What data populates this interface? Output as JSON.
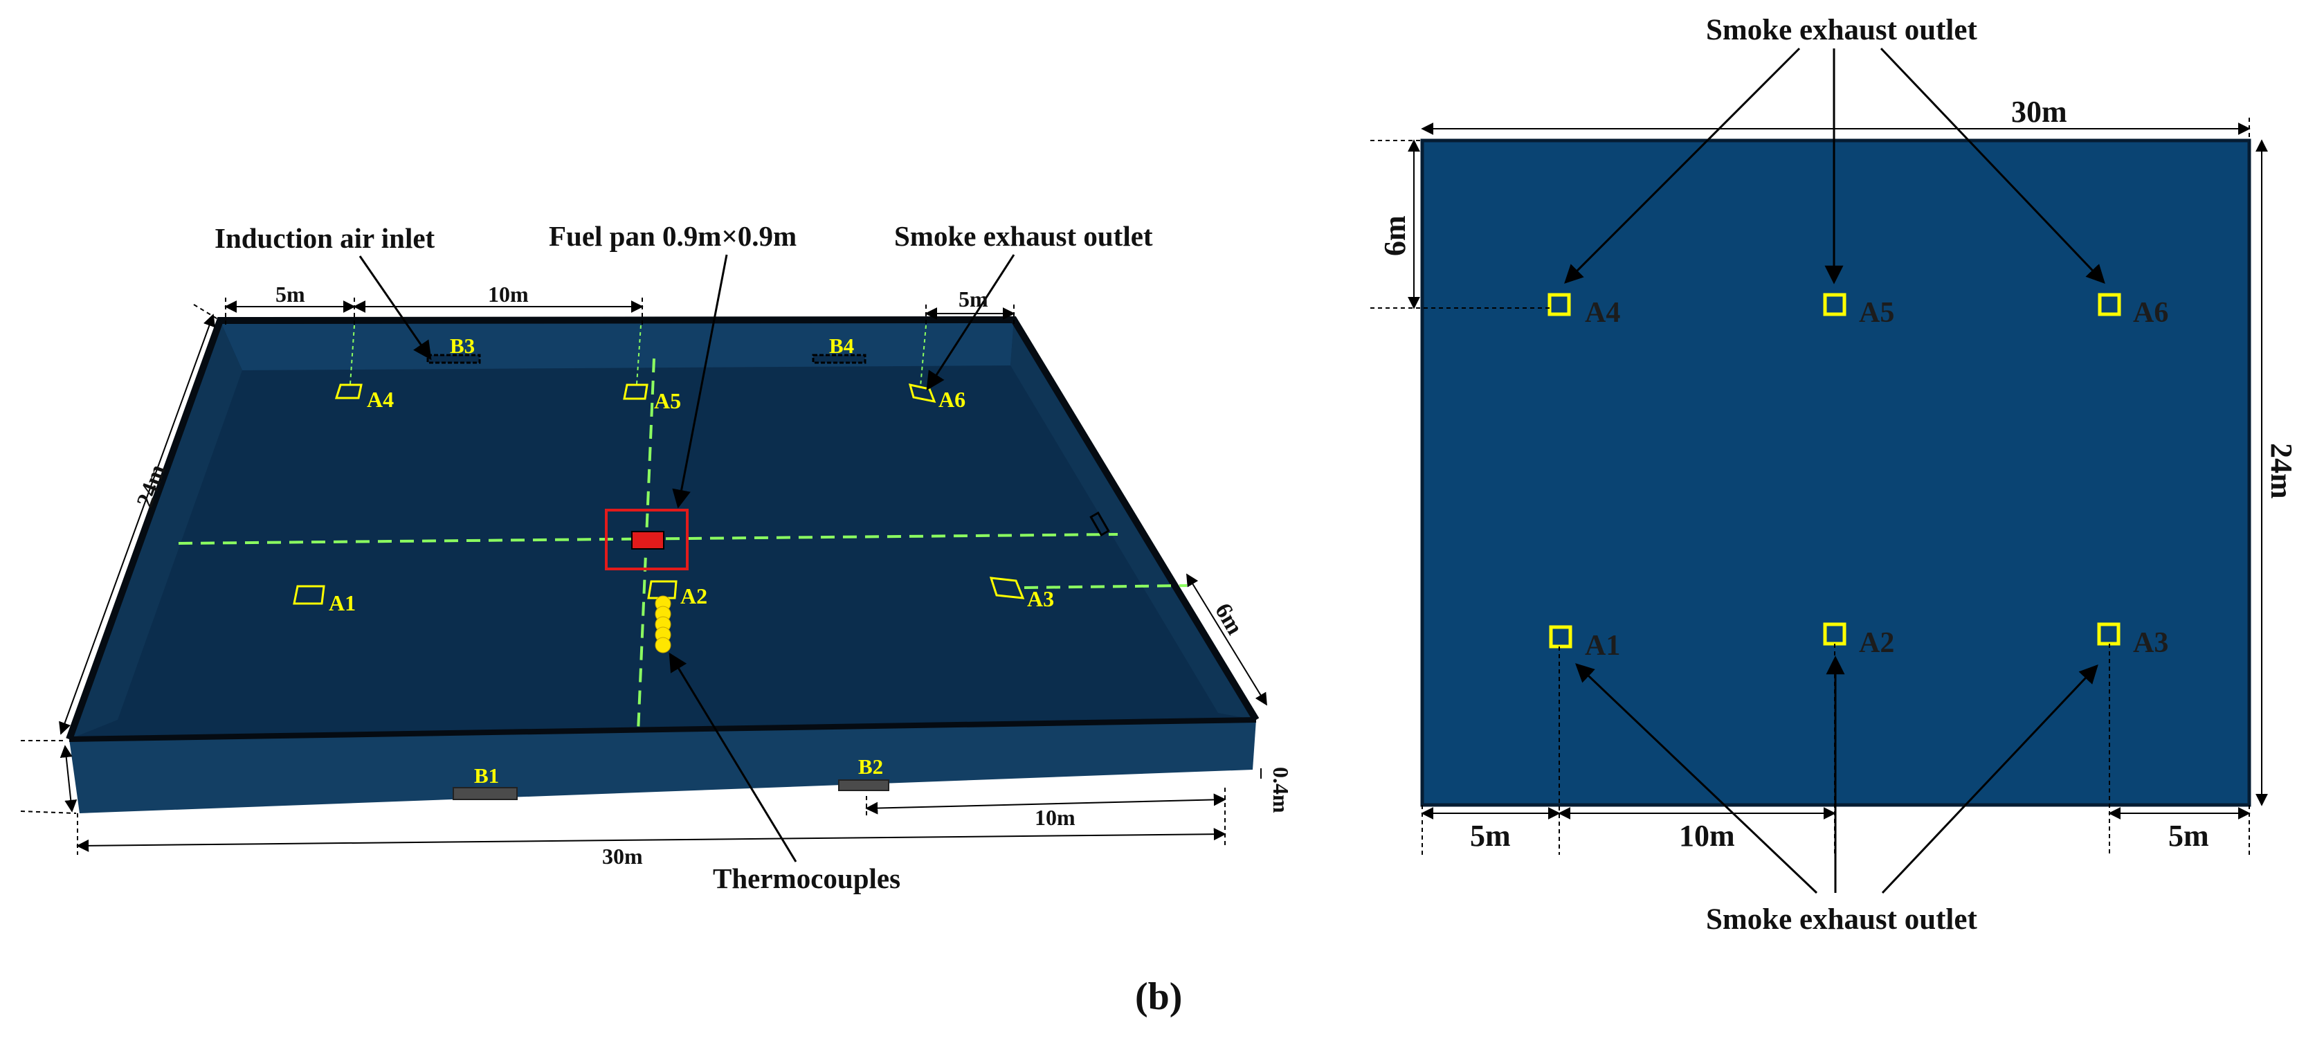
{
  "colors": {
    "pool_floor": "#0b2d4d",
    "pool_wall": "#123f66",
    "plan_fill": "#0a4473",
    "outlet_yellow": "#ffff00",
    "fuel_pan_red": "#e21b1b",
    "guide_green": "#8cff60"
  },
  "view3d": {
    "callouts": {
      "induction_air_inlet": "Induction air inlet",
      "fuel_pan": "Fuel pan 0.9m×0.9m",
      "smoke_exhaust_outlet": "Smoke exhaust outlet",
      "thermocouples": "Thermocouples"
    },
    "dimensions": {
      "top_left_5m": "5m",
      "top_10m": "10m",
      "top_right_5m": "5m",
      "depth_24m": "24m",
      "right_6m": "6m",
      "height_0_4m": "0.4m",
      "front_10m": "10m",
      "front_30m": "30m"
    },
    "outlets": [
      "A1",
      "A2",
      "A3",
      "A4",
      "A5",
      "A6"
    ],
    "inlets": [
      "B1",
      "B2",
      "B3",
      "B4"
    ]
  },
  "plan": {
    "callouts": {
      "top": "Smoke exhaust outlet",
      "bottom": "Smoke exhaust outlet"
    },
    "dimensions": {
      "width_30m": "30m",
      "height_24m": "24m",
      "left_6m": "6m",
      "bottom_left_5m": "5m",
      "bottom_10m": "10m",
      "bottom_right_5m": "5m"
    },
    "outlets": [
      "A1",
      "A2",
      "A3",
      "A4",
      "A5",
      "A6"
    ]
  },
  "panel_label": "(b)"
}
